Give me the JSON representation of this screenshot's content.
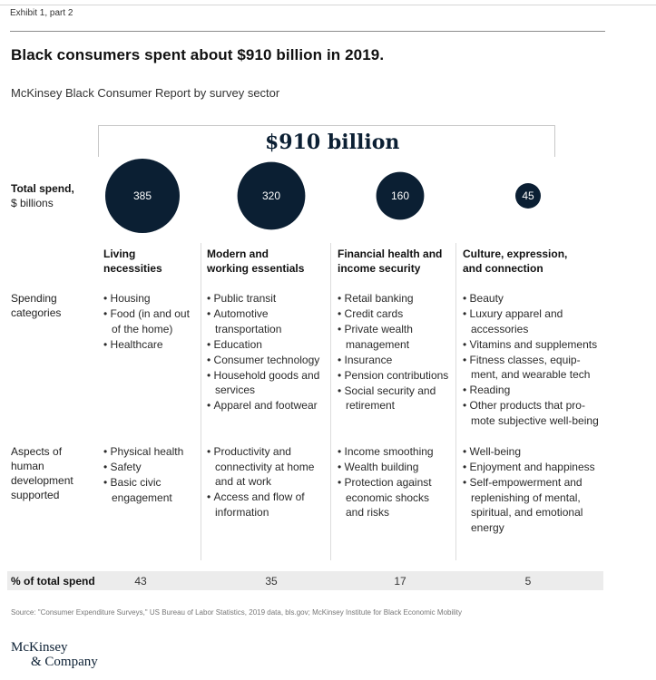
{
  "exhibit": "Exhibit 1, part 2",
  "title": "Black consumers spent about $910 billion in 2019.",
  "subtitle": "McKinsey Black Consumer Report by survey sector",
  "total_label": "$910 billion",
  "row_labels": {
    "total_spend_title": "Total spend,",
    "total_spend_unit": "$ billions",
    "spending_categories": [
      "Spending",
      "categories"
    ],
    "aspects": [
      "Aspects of",
      "human",
      "development",
      "supported"
    ],
    "pct_total": "% of total spend"
  },
  "colors": {
    "bubble": "#0b1f33",
    "bubble_text": "#ffffff",
    "pct_bar": "#ececec"
  },
  "chart_data": {
    "type": "bubble",
    "title": "Black consumers spent about $910 billion in 2019.",
    "subtitle": "McKinsey Black Consumer Report by survey sector",
    "unit": "$ billions",
    "total": 910,
    "categories": [
      "Living necessities",
      "Modern and working essentials",
      "Financial health and income security",
      "Culture, expression, and connection"
    ],
    "values": [
      385,
      320,
      160,
      45
    ],
    "pct_of_total": [
      43,
      35,
      17,
      5
    ]
  },
  "columns": [
    {
      "head": [
        "Living",
        "necessities"
      ],
      "spending": [
        "Housing",
        "Food (in and out of the home)",
        "Healthcare"
      ],
      "aspects": [
        "Physical health",
        "Safety",
        "Basic civic engagement"
      ]
    },
    {
      "head": [
        "Modern and",
        "working essentials"
      ],
      "spending": [
        "Public transit",
        "Automotive transportation",
        "Education",
        "Consumer technology",
        "Household goods and services",
        "Apparel and footwear"
      ],
      "aspects": [
        "Productivity and connectivity at home and at work",
        "Access and flow of information"
      ]
    },
    {
      "head": [
        "Financial health and",
        "income security"
      ],
      "spending": [
        "Retail banking",
        "Credit cards",
        "Private wealth management",
        "Insurance",
        "Pension contributions",
        "Social security and retirement"
      ],
      "aspects": [
        "Income smoothing",
        "Wealth building",
        "Protection against economic shocks and risks"
      ]
    },
    {
      "head": [
        "Culture, expression,",
        "and connection"
      ],
      "spending": [
        "Beauty",
        "Luxury apparel and accessories",
        "Vitamins and supplements",
        "Fitness classes, equip-ment, and wearable tech",
        "Reading",
        "Other products that pro-mote subjective well-being"
      ],
      "aspects": [
        "Well-being",
        "Enjoyment and happiness",
        "Self-empowerment and replenishing of mental, spiritual, and emotional energy"
      ]
    }
  ],
  "source": "Source: \"Consumer Expenditure Surveys,\" US Bureau of Labor Statistics, 2019 data, bls.gov; McKinsey Institute for Black Economic Mobility",
  "logo": [
    "McKinsey",
    "& Company"
  ]
}
